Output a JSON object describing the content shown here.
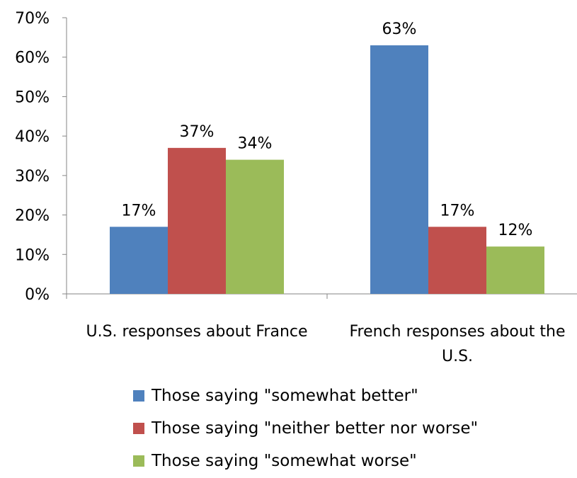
{
  "chart_data": {
    "type": "bar",
    "categories": [
      [
        "U.S. responses about France"
      ],
      [
        "French responses about the",
        "U.S."
      ]
    ],
    "series": [
      {
        "name": "Those saying \"somewhat better\"",
        "values": [
          17,
          63
        ],
        "color": "#4F81BD"
      },
      {
        "name": "Those saying \"neither better nor worse\"",
        "values": [
          37,
          17
        ],
        "color": "#C0504D"
      },
      {
        "name": "Those saying \"somewhat worse\"",
        "values": [
          34,
          12
        ],
        "color": "#9BBB59"
      }
    ],
    "data_labels": [
      [
        "17%",
        "63%"
      ],
      [
        "37%",
        "17%"
      ],
      [
        "34%",
        "12%"
      ]
    ],
    "yticks": [
      "0%",
      "10%",
      "20%",
      "30%",
      "40%",
      "50%",
      "60%",
      "70%"
    ],
    "ylim": [
      0,
      70
    ],
    "grid": false,
    "legend_position": "bottom"
  }
}
